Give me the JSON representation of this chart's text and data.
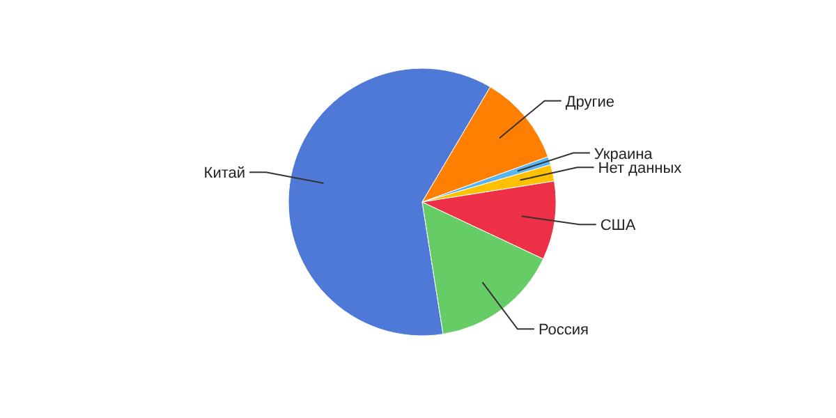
{
  "chart_data": {
    "type": "pie",
    "categories": [
      "Китай",
      "Другие",
      "Украина",
      "Нет данных",
      "США",
      "Россия"
    ],
    "values": [
      61,
      11,
      1,
      2,
      9.5,
      15.5
    ],
    "colors": [
      "#4f79d6",
      "#ff7f00",
      "#5ab4f0",
      "#ffc000",
      "#ee3046",
      "#66cc66"
    ],
    "legend": false
  }
}
